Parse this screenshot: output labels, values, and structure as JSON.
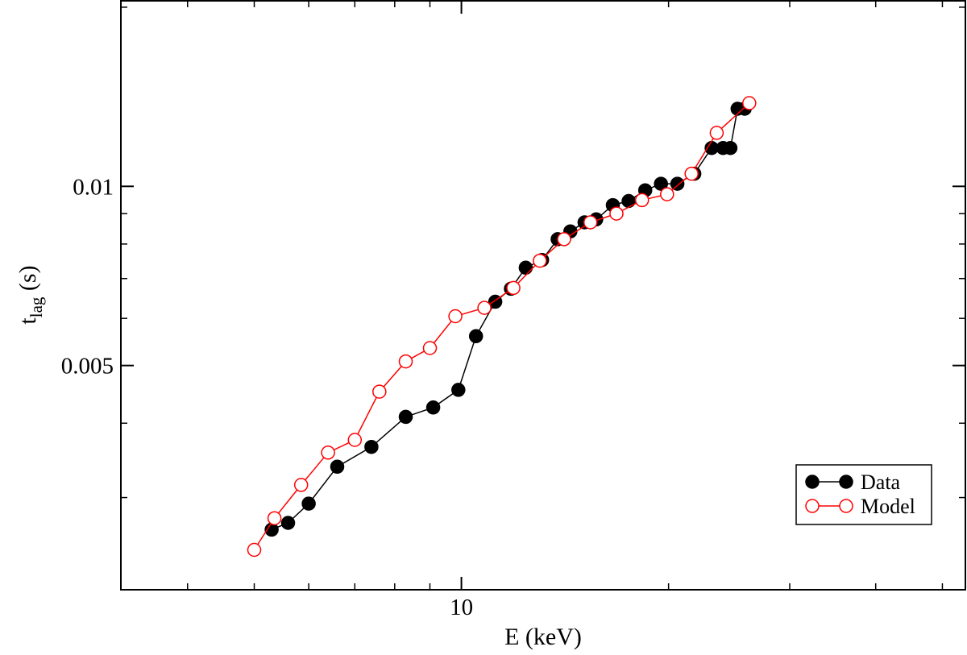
{
  "chart_data": {
    "type": "line",
    "xlabel": "E (keV)",
    "ylabel": {
      "main": "t",
      "sub": "lag",
      "unit": " (s)"
    },
    "x_scale": "log",
    "y_scale": "log",
    "xlim": [
      3.2,
      54
    ],
    "ylim": [
      0.0021,
      0.0205
    ],
    "x_major_ticks": [
      {
        "value": 10,
        "label": "10"
      }
    ],
    "x_minor_ticks": [
      4,
      5,
      6,
      7,
      8,
      9,
      20,
      30,
      40,
      50
    ],
    "y_major_ticks": [
      {
        "value": 0.005,
        "label": "0.005"
      },
      {
        "value": 0.01,
        "label": "0.01"
      }
    ],
    "y_minor_ticks": [
      0.003,
      0.004,
      0.006,
      0.007,
      0.008,
      0.009,
      0.02
    ],
    "grid": false,
    "legend": {
      "position": "bottom-right",
      "entries": [
        {
          "name": "Data",
          "series": 0
        },
        {
          "name": "Model",
          "series": 1
        }
      ]
    },
    "series": [
      {
        "name": "Data",
        "color": "#000000",
        "marker": "filled-circle",
        "points": [
          [
            5.3,
            0.00265
          ],
          [
            5.6,
            0.00272
          ],
          [
            6.0,
            0.00293
          ],
          [
            6.6,
            0.00338
          ],
          [
            7.4,
            0.00365
          ],
          [
            8.3,
            0.0041
          ],
          [
            9.1,
            0.00425
          ],
          [
            9.9,
            0.00455
          ],
          [
            10.5,
            0.0056
          ],
          [
            11.2,
            0.0064
          ],
          [
            11.8,
            0.00673
          ],
          [
            12.4,
            0.0073
          ],
          [
            13.1,
            0.00752
          ],
          [
            13.8,
            0.00815
          ],
          [
            14.4,
            0.0084
          ],
          [
            15.1,
            0.0087
          ],
          [
            15.7,
            0.0088
          ],
          [
            16.6,
            0.0093
          ],
          [
            17.5,
            0.00945
          ],
          [
            18.5,
            0.00985
          ],
          [
            19.5,
            0.0101
          ],
          [
            20.6,
            0.0101
          ],
          [
            21.8,
            0.0105
          ],
          [
            23.1,
            0.0116
          ],
          [
            24.0,
            0.0116
          ],
          [
            24.6,
            0.0116
          ],
          [
            25.2,
            0.0135
          ],
          [
            25.8,
            0.0135
          ]
        ]
      },
      {
        "name": "Model",
        "color": "#ff0000",
        "marker": "open-circle",
        "points": [
          [
            5.0,
            0.00245
          ],
          [
            5.35,
            0.00277
          ],
          [
            5.85,
            0.00315
          ],
          [
            6.4,
            0.00357
          ],
          [
            7.0,
            0.00375
          ],
          [
            7.6,
            0.00452
          ],
          [
            8.3,
            0.00508
          ],
          [
            9.0,
            0.00535
          ],
          [
            9.8,
            0.00605
          ],
          [
            10.8,
            0.00625
          ],
          [
            11.9,
            0.00675
          ],
          [
            13.0,
            0.0075
          ],
          [
            14.1,
            0.00815
          ],
          [
            15.4,
            0.0087
          ],
          [
            16.8,
            0.009
          ],
          [
            18.3,
            0.00948
          ],
          [
            19.9,
            0.0097
          ],
          [
            21.6,
            0.0105
          ],
          [
            23.5,
            0.0123
          ],
          [
            26.2,
            0.0138
          ]
        ]
      }
    ]
  }
}
